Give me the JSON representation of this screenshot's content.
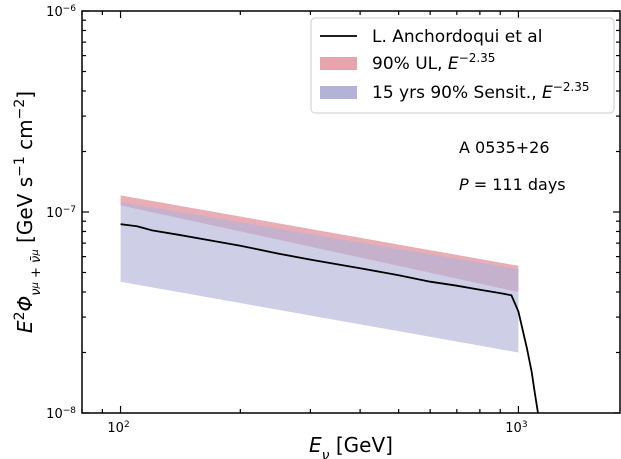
{
  "chart_data": {
    "type": "area",
    "x_scale": "log",
    "y_scale": "log",
    "xlim": [
      80,
      1800
    ],
    "ylim": [
      1e-08,
      1e-06
    ],
    "xlabel": "E_ν [GeV]",
    "ylabel": "E²Φ_{ν_μ+ν̄_μ} [GeV s⁻¹ cm⁻²]",
    "x_ticks": [
      {
        "value": 100,
        "base": "10",
        "exp": "2"
      },
      {
        "value": 1000,
        "base": "10",
        "exp": "3"
      }
    ],
    "y_ticks": [
      {
        "value": 1e-08,
        "base": "10",
        "exp": "−8"
      },
      {
        "value": 1e-07,
        "base": "10",
        "exp": "−7"
      },
      {
        "value": 1e-06,
        "base": "10",
        "exp": "−6"
      }
    ],
    "series": [
      {
        "name": "L. Anchordoqui et al",
        "kind": "line",
        "color": "#000000",
        "x": [
          100,
          110,
          120,
          140,
          170,
          200,
          250,
          300,
          350,
          400,
          500,
          600,
          700,
          800,
          900,
          960,
          1000,
          1050,
          1080,
          1100,
          1120
        ],
        "y": [
          8.7e-08,
          8.5e-08,
          8.1e-08,
          7.7e-08,
          7.2e-08,
          6.8e-08,
          6.2e-08,
          5.8e-08,
          5.5e-08,
          5.25e-08,
          4.85e-08,
          4.5e-08,
          4.3e-08,
          4.1e-08,
          3.95e-08,
          3.85e-08,
          3.2e-08,
          2.1e-08,
          1.6e-08,
          1.25e-08,
          1e-08
        ]
      },
      {
        "name": "90% UL, E^{−2.35}",
        "label_main": "90% UL, ",
        "label_exp": "−2.35",
        "kind": "band",
        "color": "#e6a4ad",
        "x": [
          100,
          1000
        ],
        "y_low": [
          1.08e-07,
          4e-08
        ],
        "y_high": [
          1.21e-07,
          5.4e-08
        ]
      },
      {
        "name": "15 yrs 90% Sensit., E^{−2.35}",
        "label_main": "15 yrs 90% Sensit., ",
        "label_exp": "−2.35",
        "kind": "band",
        "color": "#b3b3d8",
        "x": [
          100,
          1000
        ],
        "y_low": [
          4.5e-08,
          2e-08
        ],
        "y_high": [
          1.12e-07,
          5.2e-08
        ]
      }
    ],
    "annotations": [
      {
        "text": "A 0535+26"
      },
      {
        "text_italic": "P",
        "text_rest": " = 111 days"
      }
    ],
    "legend_position": "top-right"
  }
}
